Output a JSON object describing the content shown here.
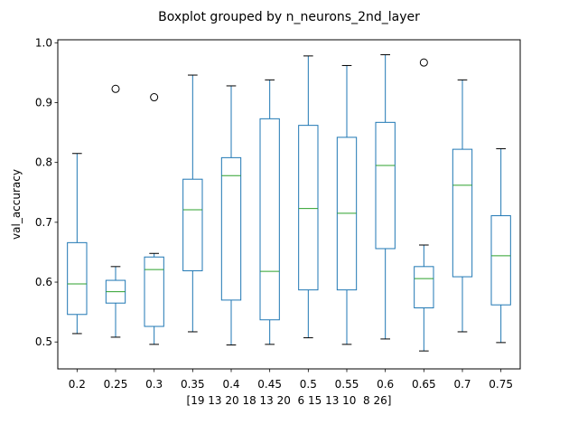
{
  "chart_data": {
    "type": "boxplot",
    "title": "Boxplot grouped by n_neurons_2nd_layer",
    "xlabel": "[19 13 20 18 13 20  6 15 13 10  8 26]",
    "ylabel": "val_accuracy",
    "ylim": [
      0.455,
      1.005
    ],
    "yticks": [
      "0.5",
      "0.6",
      "0.7",
      "0.8",
      "0.9",
      "1.0"
    ],
    "grid": false,
    "colors": {
      "box": "#1f77b4",
      "median": "#2ca02c",
      "flier": "#000000"
    },
    "categories": [
      "0.2",
      "0.25",
      "0.3",
      "0.35",
      "0.4",
      "0.45",
      "0.5",
      "0.55",
      "0.6",
      "0.65",
      "0.7",
      "0.75"
    ],
    "boxes": [
      {
        "whislo": 0.514,
        "q1": 0.546,
        "med": 0.597,
        "q3": 0.666,
        "whishi": 0.815,
        "fliers": []
      },
      {
        "whislo": 0.508,
        "q1": 0.565,
        "med": 0.584,
        "q3": 0.603,
        "whishi": 0.626,
        "fliers": [
          0.923
        ]
      },
      {
        "whislo": 0.496,
        "q1": 0.526,
        "med": 0.621,
        "q3": 0.642,
        "whishi": 0.648,
        "fliers": [
          0.909
        ]
      },
      {
        "whislo": 0.517,
        "q1": 0.619,
        "med": 0.721,
        "q3": 0.772,
        "whishi": 0.946,
        "fliers": []
      },
      {
        "whislo": 0.495,
        "q1": 0.57,
        "med": 0.778,
        "q3": 0.808,
        "whishi": 0.928,
        "fliers": []
      },
      {
        "whislo": 0.496,
        "q1": 0.537,
        "med": 0.618,
        "q3": 0.873,
        "whishi": 0.938,
        "fliers": []
      },
      {
        "whislo": 0.507,
        "q1": 0.587,
        "med": 0.723,
        "q3": 0.862,
        "whishi": 0.978,
        "fliers": []
      },
      {
        "whislo": 0.496,
        "q1": 0.587,
        "med": 0.715,
        "q3": 0.842,
        "whishi": 0.962,
        "fliers": []
      },
      {
        "whislo": 0.505,
        "q1": 0.656,
        "med": 0.795,
        "q3": 0.867,
        "whishi": 0.98,
        "fliers": []
      },
      {
        "whislo": 0.485,
        "q1": 0.557,
        "med": 0.606,
        "q3": 0.626,
        "whishi": 0.662,
        "fliers": [
          0.967
        ]
      },
      {
        "whislo": 0.517,
        "q1": 0.609,
        "med": 0.762,
        "q3": 0.822,
        "whishi": 0.938,
        "fliers": []
      },
      {
        "whislo": 0.499,
        "q1": 0.562,
        "med": 0.644,
        "q3": 0.711,
        "whishi": 0.823,
        "fliers": []
      }
    ]
  }
}
